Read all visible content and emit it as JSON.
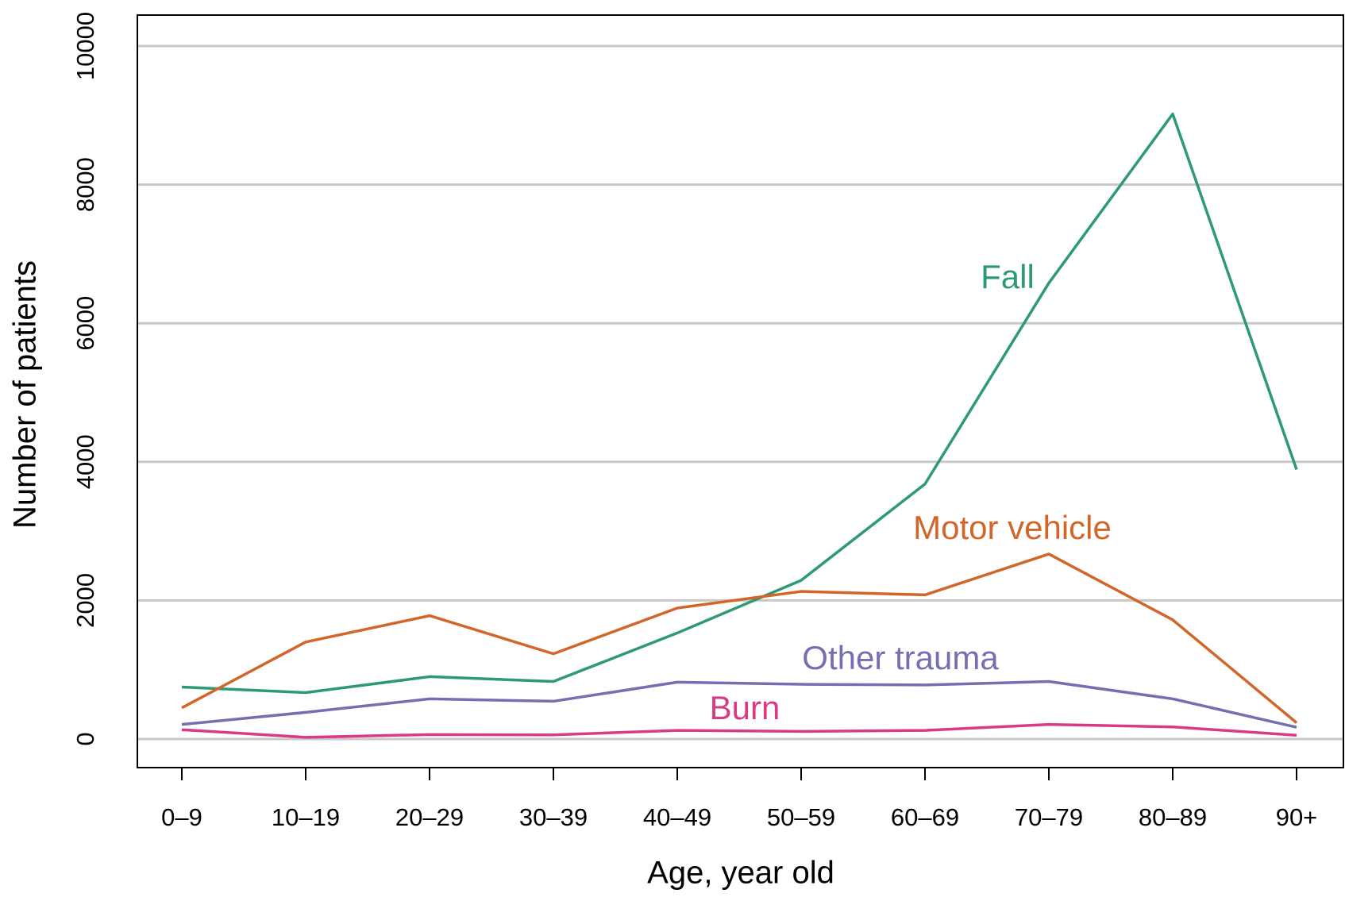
{
  "chart_data": {
    "type": "line",
    "x_label": "Age, year old",
    "y_label": "Number of patients",
    "categories": [
      "0–9",
      "10–19",
      "20–29",
      "30–39",
      "40–49",
      "50–59",
      "60–69",
      "70–79",
      "80–89",
      "90+"
    ],
    "series": [
      {
        "name": "Fall",
        "color": "#2e9977",
        "values": [
          750,
          670,
          900,
          830,
          1530,
          2290,
          3680,
          6580,
          9020,
          3890
        ]
      },
      {
        "name": "Motor vehicle",
        "color": "#d2652a",
        "values": [
          450,
          1400,
          1780,
          1230,
          1890,
          2130,
          2080,
          2670,
          1720,
          235
        ]
      },
      {
        "name": "Other trauma",
        "color": "#736fb0",
        "values": [
          210,
          385,
          580,
          545,
          820,
          790,
          780,
          830,
          580,
          170
        ]
      },
      {
        "name": "Burn",
        "color": "#d93a85",
        "values": [
          135,
          25,
          65,
          60,
          125,
          110,
          125,
          210,
          175,
          55
        ]
      }
    ],
    "ylim": [
      0,
      10000
    ],
    "yticks": [
      0,
      2000,
      4000,
      6000,
      8000,
      10000
    ],
    "grid": true
  }
}
